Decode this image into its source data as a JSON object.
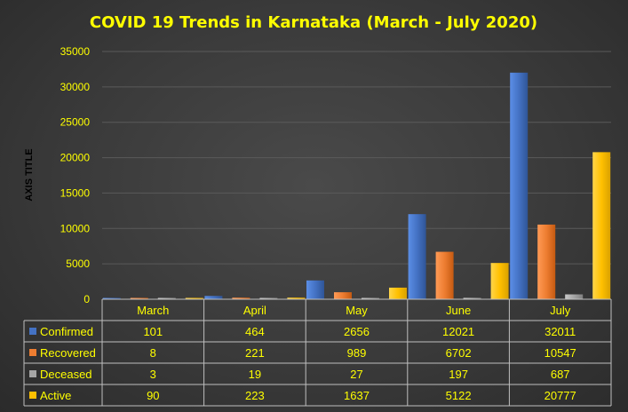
{
  "colors": {
    "background": "#3a3a3a",
    "text": "#ffff00",
    "confirmed": "#4472c4",
    "recovered": "#ed7d31",
    "deceased": "#a5a5a5",
    "active": "#ffc000"
  },
  "chart_data": {
    "type": "bar",
    "title": "COVID 19 Trends in Karnataka (March - July 2020)",
    "ylabel": "AXIS TITLE",
    "xlabel": "",
    "ylim": [
      0,
      35000
    ],
    "yticks": [
      0,
      5000,
      10000,
      15000,
      20000,
      25000,
      30000,
      35000
    ],
    "ytick_labels": [
      "0",
      "5000",
      "10000",
      "15000",
      "20000",
      "25000",
      "30000",
      "35000"
    ],
    "grid": true,
    "legend": "data-table",
    "categories": [
      "March",
      "April",
      "May",
      "June",
      "July"
    ],
    "series": [
      {
        "name": "Confirmed",
        "color": "#4472c4",
        "values": [
          101,
          464,
          2656,
          12021,
          32011
        ]
      },
      {
        "name": "Recovered",
        "color": "#ed7d31",
        "values": [
          8,
          221,
          989,
          6702,
          10547
        ]
      },
      {
        "name": "Deceased",
        "color": "#a5a5a5",
        "values": [
          3,
          19,
          27,
          197,
          687
        ]
      },
      {
        "name": "Active",
        "color": "#ffc000",
        "values": [
          90,
          223,
          1637,
          5122,
          20777
        ]
      }
    ]
  }
}
